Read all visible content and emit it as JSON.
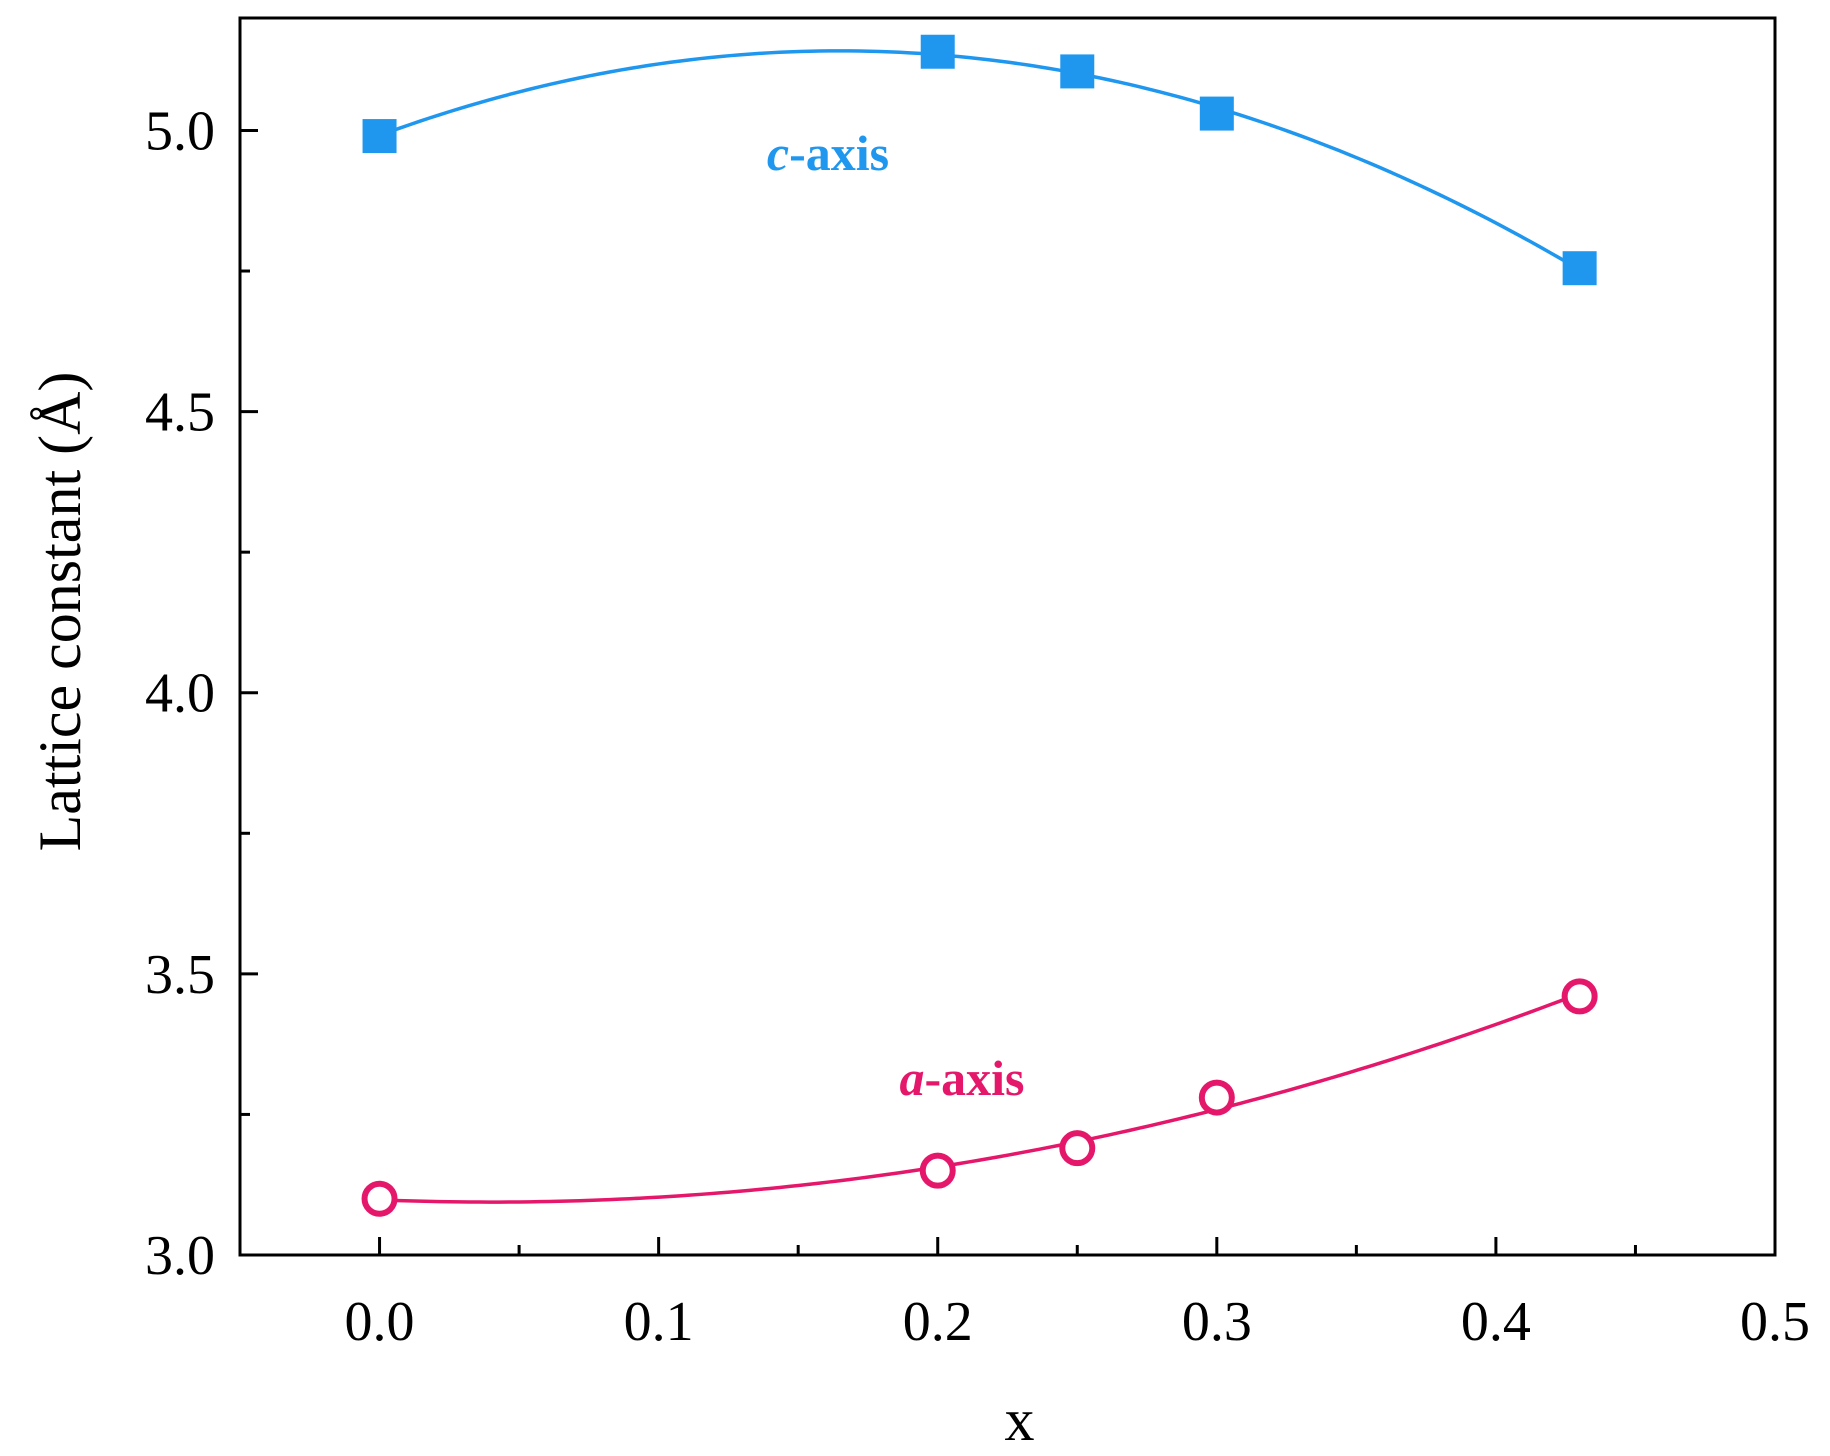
{
  "chart_data": {
    "type": "scatter",
    "xlabel": "x",
    "ylabel": "Lattice constant (Å)",
    "xlim": [
      -0.05,
      0.5
    ],
    "ylim": [
      3.0,
      5.2
    ],
    "xticks": [
      0.0,
      0.1,
      0.2,
      0.3,
      0.4,
      0.5
    ],
    "xtick_labels": [
      "0.0",
      "0.1",
      "0.2",
      "0.3",
      "0.4",
      "0.5"
    ],
    "yticks": [
      3.0,
      3.5,
      4.0,
      4.5,
      5.0
    ],
    "ytick_labels": [
      "3.0",
      "3.5",
      "4.0",
      "4.5",
      "5.0"
    ],
    "grid": false,
    "series": [
      {
        "name_italic": "c",
        "name_rest": "-axis",
        "color": "#1f97ef",
        "marker": "filled-square",
        "x": [
          0.0,
          0.2,
          0.25,
          0.3,
          0.43
        ],
        "y": [
          4.99,
          5.14,
          5.105,
          5.03,
          4.755
        ],
        "fit": "quadratic"
      },
      {
        "name_italic": "a",
        "name_rest": "-axis",
        "color": "#e5176a",
        "marker": "open-circle",
        "x": [
          0.0,
          0.2,
          0.25,
          0.3,
          0.43
        ],
        "y": [
          3.1,
          3.15,
          3.19,
          3.28,
          3.46
        ],
        "fit": "quadratic"
      }
    ]
  }
}
